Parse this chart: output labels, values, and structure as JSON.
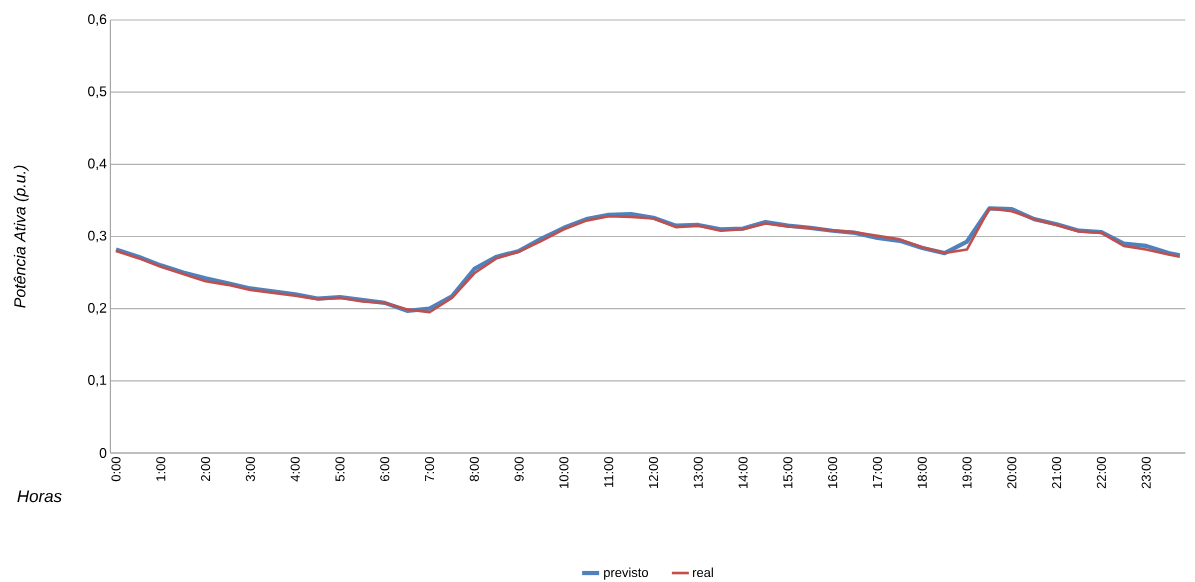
{
  "chart_data": {
    "type": "line",
    "xlabel": "Horas",
    "ylabel": "Potência Ativa (p.u.)",
    "x": [
      0,
      0.5,
      1,
      1.5,
      2,
      2.5,
      3,
      3.5,
      4,
      4.5,
      5,
      5.5,
      6,
      6.5,
      7,
      7.5,
      8,
      8.5,
      9,
      9.5,
      10,
      10.5,
      11,
      11.5,
      12,
      12.5,
      13,
      13.5,
      14,
      14.5,
      15,
      15.5,
      16,
      16.5,
      17,
      17.5,
      18,
      18.5,
      19,
      19.5,
      20,
      20.5,
      21,
      21.5,
      22,
      22.5,
      23,
      23.5,
      23.75
    ],
    "series": [
      {
        "name": "previsto",
        "color": "#4f81bd",
        "values": [
          0.282,
          0.272,
          0.26,
          0.25,
          0.242,
          0.235,
          0.228,
          0.224,
          0.22,
          0.214,
          0.216,
          0.212,
          0.208,
          0.197,
          0.2,
          0.217,
          0.255,
          0.272,
          0.28,
          0.297,
          0.312,
          0.324,
          0.33,
          0.331,
          0.326,
          0.315,
          0.316,
          0.31,
          0.311,
          0.32,
          0.315,
          0.312,
          0.308,
          0.305,
          0.298,
          0.294,
          0.284,
          0.277,
          0.293,
          0.339,
          0.338,
          0.324,
          0.317,
          0.308,
          0.306,
          0.29,
          0.287,
          0.277,
          0.274
        ]
      },
      {
        "name": "real",
        "color": "#c0504d",
        "values": [
          0.28,
          0.27,
          0.258,
          0.248,
          0.238,
          0.233,
          0.226,
          0.222,
          0.218,
          0.213,
          0.215,
          0.21,
          0.208,
          0.199,
          0.195,
          0.215,
          0.249,
          0.27,
          0.279,
          0.294,
          0.31,
          0.322,
          0.328,
          0.327,
          0.325,
          0.313,
          0.315,
          0.308,
          0.31,
          0.318,
          0.314,
          0.312,
          0.308,
          0.306,
          0.301,
          0.296,
          0.285,
          0.277,
          0.282,
          0.339,
          0.335,
          0.324,
          0.316,
          0.307,
          0.305,
          0.287,
          0.282,
          0.275,
          0.272
        ]
      }
    ],
    "xlim": [
      -0.125,
      23.875
    ],
    "ylim": [
      0,
      0.6
    ],
    "xticks": [
      {
        "value": 0,
        "label": "0:00"
      },
      {
        "value": 1,
        "label": "1:00"
      },
      {
        "value": 2,
        "label": "2:00"
      },
      {
        "value": 3,
        "label": "3:00"
      },
      {
        "value": 4,
        "label": "4:00"
      },
      {
        "value": 5,
        "label": "5:00"
      },
      {
        "value": 6,
        "label": "6:00"
      },
      {
        "value": 7,
        "label": "7:00"
      },
      {
        "value": 8,
        "label": "8:00"
      },
      {
        "value": 9,
        "label": "9:00"
      },
      {
        "value": 10,
        "label": "10:00"
      },
      {
        "value": 11,
        "label": "11:00"
      },
      {
        "value": 12,
        "label": "12:00"
      },
      {
        "value": 13,
        "label": "13:00"
      },
      {
        "value": 14,
        "label": "14:00"
      },
      {
        "value": 15,
        "label": "15:00"
      },
      {
        "value": 16,
        "label": "16:00"
      },
      {
        "value": 17,
        "label": "17:00"
      },
      {
        "value": 18,
        "label": "18:00"
      },
      {
        "value": 19,
        "label": "19:00"
      },
      {
        "value": 20,
        "label": "20:00"
      },
      {
        "value": 21,
        "label": "21:00"
      },
      {
        "value": 22,
        "label": "22:00"
      },
      {
        "value": 23,
        "label": "23:00"
      }
    ],
    "yticks": [
      0,
      {
        "value": 0.1,
        "label": "0,1"
      },
      {
        "value": 0.2,
        "label": "0,2"
      },
      {
        "value": 0.3,
        "label": "0,3"
      },
      {
        "value": 0.4,
        "label": "0,4"
      },
      {
        "value": 0.5,
        "label": "0,5"
      },
      {
        "value": 0.6,
        "label": "0,6"
      }
    ],
    "grid": "y",
    "legend": "bottom",
    "marker": "none",
    "line_style": "solid"
  }
}
